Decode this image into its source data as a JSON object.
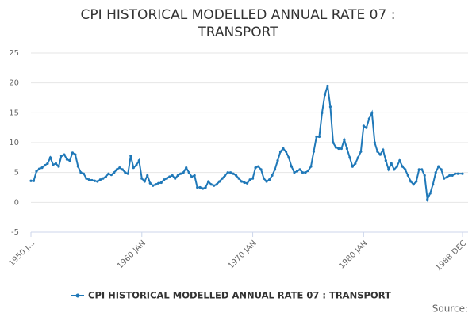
{
  "chart_data": {
    "type": "line",
    "title": "CPI HISTORICAL MODELLED ANNUAL RATE 07 : TRANSPORT",
    "source": "Source:",
    "grid": true,
    "legend": "bottom",
    "x": [
      "1950-01",
      "1950-04",
      "1950-07",
      "1950-10",
      "1951-01",
      "1951-04",
      "1951-07",
      "1951-10",
      "1952-01",
      "1952-04",
      "1952-07",
      "1952-10",
      "1953-01",
      "1953-04",
      "1953-07",
      "1953-10",
      "1954-01",
      "1954-04",
      "1954-07",
      "1954-10",
      "1955-01",
      "1955-04",
      "1955-07",
      "1955-10",
      "1956-01",
      "1956-04",
      "1956-07",
      "1956-10",
      "1957-01",
      "1957-04",
      "1957-07",
      "1957-10",
      "1958-01",
      "1958-04",
      "1958-07",
      "1958-10",
      "1959-01",
      "1959-04",
      "1959-07",
      "1959-10",
      "1960-01",
      "1960-04",
      "1960-07",
      "1960-10",
      "1961-01",
      "1961-04",
      "1961-07",
      "1961-10",
      "1962-01",
      "1962-04",
      "1962-07",
      "1962-10",
      "1963-01",
      "1963-04",
      "1963-07",
      "1963-10",
      "1964-01",
      "1964-04",
      "1964-07",
      "1964-10",
      "1965-01",
      "1965-04",
      "1965-07",
      "1965-10",
      "1966-01",
      "1966-04",
      "1966-07",
      "1966-10",
      "1967-01",
      "1967-04",
      "1967-07",
      "1967-10",
      "1968-01",
      "1968-04",
      "1968-07",
      "1968-10",
      "1969-01",
      "1969-04",
      "1969-07",
      "1969-10",
      "1970-01",
      "1970-04",
      "1970-07",
      "1970-10",
      "1971-01",
      "1971-04",
      "1971-07",
      "1971-10",
      "1972-01",
      "1972-04",
      "1972-07",
      "1972-10",
      "1973-01",
      "1973-04",
      "1973-07",
      "1973-10",
      "1974-01",
      "1974-04",
      "1974-07",
      "1974-10",
      "1975-01",
      "1975-04",
      "1975-07",
      "1975-10",
      "1976-01",
      "1976-04",
      "1976-07",
      "1976-10",
      "1977-01",
      "1977-04",
      "1977-07",
      "1977-10",
      "1978-01",
      "1978-04",
      "1978-07",
      "1978-10",
      "1979-01",
      "1979-04",
      "1979-07",
      "1979-10",
      "1980-01",
      "1980-04",
      "1980-07",
      "1980-10",
      "1981-01",
      "1981-04",
      "1981-07",
      "1981-10",
      "1982-01",
      "1982-04",
      "1982-07",
      "1982-10",
      "1983-01",
      "1983-04",
      "1983-07",
      "1983-10",
      "1984-01",
      "1984-04",
      "1984-07",
      "1984-10",
      "1985-01",
      "1985-04",
      "1985-07",
      "1985-10",
      "1986-01",
      "1986-04",
      "1986-07",
      "1986-10",
      "1987-01",
      "1987-04",
      "1987-07",
      "1987-10",
      "1988-01",
      "1988-04",
      "1988-07",
      "1988-12"
    ],
    "series": [
      {
        "name": "CPI HISTORICAL MODELLED ANNUAL RATE 07 : TRANSPORT",
        "color": "#1f78b8",
        "values": [
          3.6,
          3.6,
          5.2,
          5.6,
          5.8,
          6.2,
          6.5,
          7.5,
          6.3,
          6.5,
          6.0,
          7.8,
          8.0,
          7.2,
          7.0,
          8.3,
          8.0,
          6.0,
          5.0,
          4.8,
          4.0,
          3.8,
          3.7,
          3.6,
          3.5,
          3.8,
          4.0,
          4.3,
          4.8,
          4.6,
          5.0,
          5.5,
          5.8,
          5.5,
          5.0,
          4.8,
          7.8,
          5.8,
          6.2,
          7.0,
          4.0,
          3.5,
          4.5,
          3.2,
          2.8,
          3.0,
          3.2,
          3.3,
          3.8,
          4.0,
          4.3,
          4.5,
          4.0,
          4.5,
          4.8,
          5.0,
          5.8,
          5.0,
          4.3,
          4.5,
          2.5,
          2.5,
          2.3,
          2.5,
          3.5,
          3.0,
          2.8,
          3.0,
          3.5,
          4.0,
          4.5,
          5.0,
          5.0,
          4.8,
          4.5,
          4.0,
          3.5,
          3.3,
          3.2,
          3.8,
          4.0,
          5.8,
          6.0,
          5.5,
          4.0,
          3.5,
          3.8,
          4.5,
          5.5,
          7.0,
          8.5,
          9.0,
          8.5,
          7.5,
          6.0,
          5.0,
          5.2,
          5.5,
          5.0,
          5.0,
          5.3,
          6.0,
          8.5,
          11.0,
          11.0,
          15.0,
          18.0,
          19.5,
          16.0,
          10.0,
          9.2,
          9.0,
          9.0,
          10.5,
          9.0,
          7.5,
          6.0,
          6.5,
          7.5,
          8.5,
          12.8,
          12.5,
          14.0,
          15.0,
          10.0,
          8.5,
          8.0,
          8.8,
          7.0,
          5.5,
          6.5,
          5.5,
          6.0,
          7.0,
          6.0,
          5.5,
          4.5,
          3.5,
          3.0,
          3.5,
          5.5,
          5.5,
          4.5,
          0.5,
          1.5,
          3.0,
          5.0,
          6.0,
          5.5,
          4.0,
          4.2,
          4.5,
          4.5,
          4.8,
          4.8,
          4.8
        ]
      }
    ],
    "xlim": [
      "1950-01",
      "1988-12"
    ],
    "xticks": [
      {
        "value": "1950-01",
        "label": "1950 J..."
      },
      {
        "value": "1960-01",
        "label": "1960 JAN"
      },
      {
        "value": "1970-01",
        "label": "1970 JAN"
      },
      {
        "value": "1980-01",
        "label": "1980 JAN"
      },
      {
        "value": "1988-12",
        "label": "1988 DEC"
      }
    ],
    "ylim": [
      -5,
      25
    ],
    "yticks": [
      -5,
      0,
      5,
      10,
      15,
      20,
      25
    ]
  }
}
